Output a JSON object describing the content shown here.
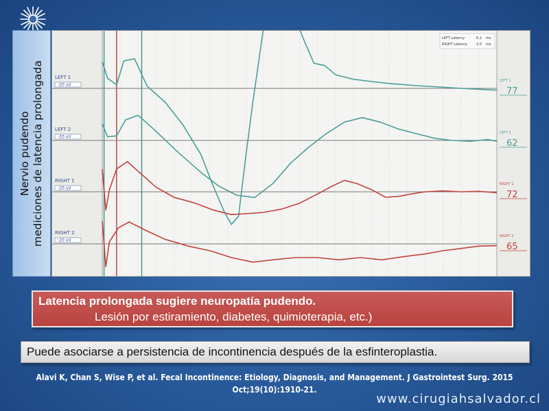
{
  "side_title": {
    "line1": "Nervio pudendo",
    "line2": "mediciones de latencia prolongada"
  },
  "red_box": {
    "line1": "Latencia prolongada sugiere neuropatía pudendo.",
    "line2": "Lesión por estiramiento, diabetes, quimioterapia, etc.)"
  },
  "grey_box": {
    "text": "Puede asociarse a persistencia de incontinencia después de la esfinteroplastia."
  },
  "citation": {
    "line1": "Alavi K, Chan S, Wise P, et al. Fecal Incontinence: Etiology, Diagnosis, and Management. J Gastrointest Surg. 2015",
    "line2": "Oct;19(10):1910-21."
  },
  "website": "www.cirugiahsalvador.cl",
  "colors": {
    "left_trace": "#4a9e9a",
    "right_trace": "#c0433c",
    "baseline": "#777777",
    "grid": "#c9c9c9",
    "marker_red": "#b33b35",
    "marker_teal": "#3d8f86"
  },
  "chart_data": {
    "type": "line",
    "info_box": {
      "left": {
        "label": "LEFT Latency",
        "value": "6.2",
        "unit": "ms"
      },
      "right": {
        "label": "RIGHT Latency",
        "value": "2.0",
        "unit": "ms"
      }
    },
    "channels": [
      {
        "name": "LEFT 1",
        "gain": "20 uV",
        "end_value": "77",
        "end_label": "LEFT 1",
        "color": "left",
        "points": [
          [
            0,
            58
          ],
          [
            3,
            22
          ],
          [
            8,
            8
          ],
          [
            12,
            60
          ],
          [
            18,
            65
          ],
          [
            25,
            5
          ],
          [
            35,
            -30
          ],
          [
            45,
            -80
          ],
          [
            55,
            -145
          ],
          [
            62,
            -215
          ],
          [
            68,
            -270
          ],
          [
            72,
            -298
          ],
          [
            76,
            -280
          ],
          [
            80,
            -150
          ],
          [
            84,
            -30
          ],
          [
            88,
            80
          ],
          [
            92,
            190
          ],
          [
            96,
            240
          ],
          [
            100,
            225
          ],
          [
            105,
            180
          ],
          [
            112,
            110
          ],
          [
            118,
            55
          ],
          [
            124,
            50
          ],
          [
            130,
            30
          ],
          [
            140,
            20
          ],
          [
            150,
            15
          ],
          [
            162,
            10
          ],
          [
            175,
            6
          ],
          [
            188,
            3
          ],
          [
            200,
            0
          ],
          [
            210,
            -2
          ],
          [
            220,
            -4
          ]
        ]
      },
      {
        "name": "LEFT 2",
        "gain": "20 uV",
        "end_value": "62",
        "end_label": "LEFT 2",
        "color": "left",
        "points": [
          [
            0,
            36
          ],
          [
            3,
            8
          ],
          [
            8,
            10
          ],
          [
            13,
            45
          ],
          [
            20,
            55
          ],
          [
            30,
            20
          ],
          [
            42,
            -25
          ],
          [
            55,
            -70
          ],
          [
            65,
            -100
          ],
          [
            75,
            -120
          ],
          [
            85,
            -125
          ],
          [
            95,
            -95
          ],
          [
            105,
            -50
          ],
          [
            115,
            -15
          ],
          [
            125,
            15
          ],
          [
            135,
            40
          ],
          [
            145,
            50
          ],
          [
            155,
            40
          ],
          [
            165,
            25
          ],
          [
            175,
            15
          ],
          [
            185,
            5
          ],
          [
            195,
            0
          ],
          [
            205,
            -2
          ],
          [
            215,
            2
          ],
          [
            220,
            -2
          ]
        ]
      },
      {
        "name": "RIGHT 1",
        "gain": "20 uV",
        "end_value": "72",
        "end_label": "RIGHT 1",
        "color": "right",
        "points": [
          [
            0,
            50
          ],
          [
            2,
            -40
          ],
          [
            4,
            5
          ],
          [
            8,
            50
          ],
          [
            14,
            66
          ],
          [
            20,
            45
          ],
          [
            30,
            10
          ],
          [
            40,
            -12
          ],
          [
            52,
            -25
          ],
          [
            62,
            -40
          ],
          [
            72,
            -50
          ],
          [
            80,
            -48
          ],
          [
            90,
            -45
          ],
          [
            100,
            -38
          ],
          [
            110,
            -25
          ],
          [
            120,
            -5
          ],
          [
            128,
            12
          ],
          [
            135,
            25
          ],
          [
            142,
            18
          ],
          [
            150,
            5
          ],
          [
            158,
            -12
          ],
          [
            165,
            -10
          ],
          [
            172,
            -5
          ],
          [
            180,
            0
          ],
          [
            190,
            2
          ],
          [
            200,
            0
          ],
          [
            210,
            1
          ],
          [
            220,
            -2
          ]
        ]
      },
      {
        "name": "RIGHT 2",
        "gain": "20 uV",
        "end_value": "65",
        "end_label": "RIGHT 2",
        "color": "right",
        "points": [
          [
            0,
            50
          ],
          [
            2,
            -50
          ],
          [
            4,
            5
          ],
          [
            9,
            35
          ],
          [
            15,
            48
          ],
          [
            24,
            30
          ],
          [
            35,
            10
          ],
          [
            48,
            -5
          ],
          [
            60,
            -15
          ],
          [
            72,
            -30
          ],
          [
            84,
            -40
          ],
          [
            95,
            -35
          ],
          [
            108,
            -30
          ],
          [
            120,
            -30
          ],
          [
            132,
            -35
          ],
          [
            144,
            -30
          ],
          [
            156,
            -35
          ],
          [
            168,
            -28
          ],
          [
            180,
            -22
          ],
          [
            190,
            -15
          ],
          [
            200,
            -10
          ],
          [
            210,
            -5
          ],
          [
            220,
            -4
          ]
        ]
      }
    ],
    "markers": [
      {
        "x": 1,
        "color": "teal"
      },
      {
        "x": 8,
        "color": "red"
      },
      {
        "x": 22,
        "color": "teal"
      }
    ]
  }
}
